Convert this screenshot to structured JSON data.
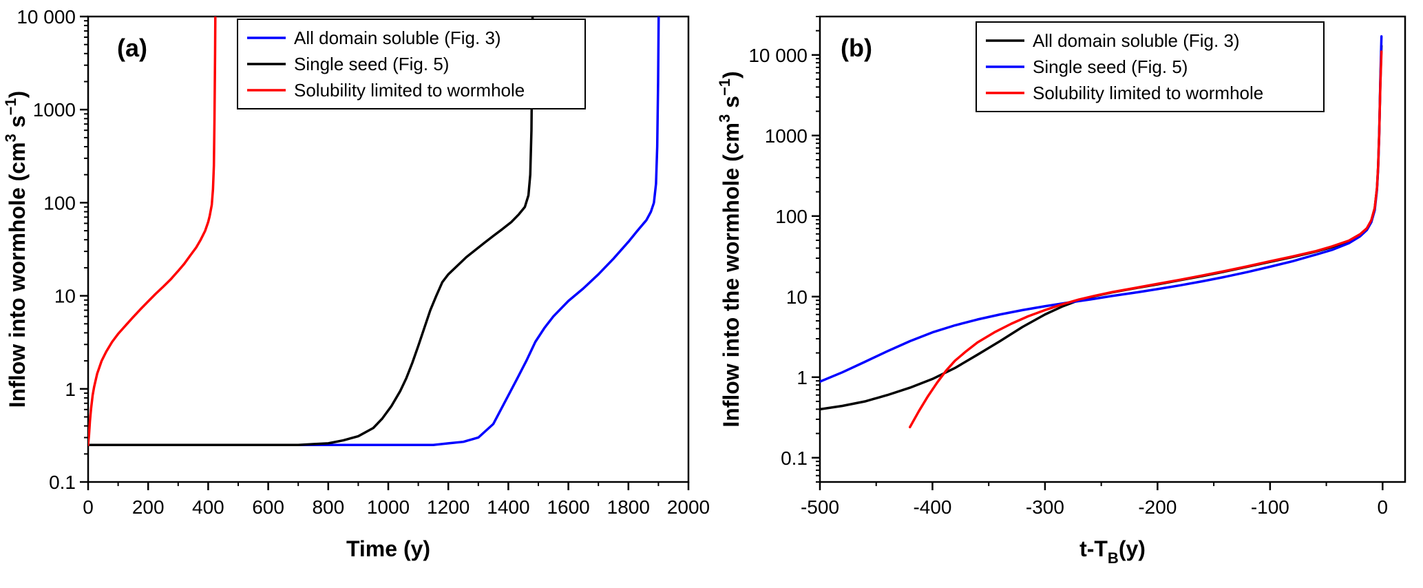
{
  "figure": {
    "background": "#ffffff"
  },
  "chart_data": [
    {
      "id": "a",
      "type": "line",
      "panel_label": "(a)",
      "xlabel_segments": [
        {
          "t": "Time (y)"
        }
      ],
      "ylabel_segments": [
        {
          "t": "Inflow into wormhole (cm"
        },
        {
          "t": "3",
          "sup": true
        },
        {
          "t": " s"
        },
        {
          "t": "−1",
          "sup": true
        },
        {
          "t": ")"
        }
      ],
      "x_range": [
        0,
        2000
      ],
      "y_range": [
        0.1,
        10000
      ],
      "y_scale": "log",
      "grid": false,
      "x_ticks": {
        "values": [
          0,
          200,
          400,
          600,
          800,
          1000,
          1200,
          1400,
          1600,
          1800,
          2000
        ],
        "labels": [
          "0",
          "200",
          "400",
          "600",
          "800",
          "1000",
          "1200",
          "1400",
          "1600",
          "1800",
          "2000"
        ]
      },
      "x_minor_step": 100,
      "y_ticks": {
        "values": [
          0.1,
          1,
          10,
          100,
          1000,
          10000
        ],
        "labels": [
          "0.1",
          "1",
          "10",
          "100",
          "1000",
          "10 000"
        ]
      },
      "legend_position": "top-center",
      "series": [
        {
          "name": "All domain soluble (Fig. 3)",
          "color": "#0000ff",
          "points": [
            [
              0,
              0.25
            ],
            [
              100,
              0.25
            ],
            [
              200,
              0.25
            ],
            [
              300,
              0.25
            ],
            [
              400,
              0.25
            ],
            [
              500,
              0.25
            ],
            [
              600,
              0.25
            ],
            [
              700,
              0.25
            ],
            [
              800,
              0.25
            ],
            [
              900,
              0.25
            ],
            [
              1000,
              0.25
            ],
            [
              1100,
              0.25
            ],
            [
              1150,
              0.25
            ],
            [
              1200,
              0.26
            ],
            [
              1250,
              0.27
            ],
            [
              1300,
              0.3
            ],
            [
              1350,
              0.42
            ],
            [
              1400,
              0.85
            ],
            [
              1430,
              1.3
            ],
            [
              1460,
              2.0
            ],
            [
              1490,
              3.2
            ],
            [
              1520,
              4.5
            ],
            [
              1550,
              6.0
            ],
            [
              1600,
              8.8
            ],
            [
              1650,
              12
            ],
            [
              1700,
              17
            ],
            [
              1750,
              25
            ],
            [
              1800,
              38
            ],
            [
              1830,
              50
            ],
            [
              1860,
              65
            ],
            [
              1875,
              80
            ],
            [
              1885,
              100
            ],
            [
              1892,
              160
            ],
            [
              1896,
              400
            ],
            [
              1899,
              2000
            ],
            [
              1901,
              12000
            ]
          ]
        },
        {
          "name": "Single seed (Fig. 5)",
          "color": "#000000",
          "points": [
            [
              0,
              0.25
            ],
            [
              100,
              0.25
            ],
            [
              200,
              0.25
            ],
            [
              300,
              0.25
            ],
            [
              400,
              0.25
            ],
            [
              500,
              0.25
            ],
            [
              600,
              0.25
            ],
            [
              700,
              0.25
            ],
            [
              750,
              0.255
            ],
            [
              800,
              0.26
            ],
            [
              850,
              0.28
            ],
            [
              900,
              0.31
            ],
            [
              950,
              0.38
            ],
            [
              980,
              0.48
            ],
            [
              1010,
              0.65
            ],
            [
              1040,
              0.95
            ],
            [
              1060,
              1.3
            ],
            [
              1080,
              1.9
            ],
            [
              1100,
              2.9
            ],
            [
              1120,
              4.5
            ],
            [
              1140,
              7
            ],
            [
              1160,
              10
            ],
            [
              1180,
              14
            ],
            [
              1200,
              17
            ],
            [
              1230,
              21
            ],
            [
              1260,
              26
            ],
            [
              1290,
              31
            ],
            [
              1320,
              37
            ],
            [
              1350,
              44
            ],
            [
              1380,
              52
            ],
            [
              1410,
              62
            ],
            [
              1435,
              75
            ],
            [
              1455,
              90
            ],
            [
              1467,
              120
            ],
            [
              1473,
              200
            ],
            [
              1477,
              600
            ],
            [
              1479,
              3000
            ],
            [
              1481,
              12000
            ]
          ]
        },
        {
          "name": "Solubility limited to wormhole",
          "color": "#ff0000",
          "points": [
            [
              0,
              0.25
            ],
            [
              3,
              0.32
            ],
            [
              6,
              0.45
            ],
            [
              10,
              0.62
            ],
            [
              15,
              0.85
            ],
            [
              20,
              1.05
            ],
            [
              30,
              1.45
            ],
            [
              45,
              2.0
            ],
            [
              60,
              2.5
            ],
            [
              80,
              3.2
            ],
            [
              100,
              3.9
            ],
            [
              125,
              4.8
            ],
            [
              150,
              5.9
            ],
            [
              175,
              7.2
            ],
            [
              200,
              8.7
            ],
            [
              225,
              10.5
            ],
            [
              250,
              12.5
            ],
            [
              275,
              15
            ],
            [
              300,
              18.5
            ],
            [
              320,
              22
            ],
            [
              340,
              27
            ],
            [
              360,
              33
            ],
            [
              375,
              40
            ],
            [
              390,
              50
            ],
            [
              400,
              62
            ],
            [
              405,
              72
            ],
            [
              412,
              95
            ],
            [
              416,
              140
            ],
            [
              419,
              250
            ],
            [
              421,
              800
            ],
            [
              423,
              4000
            ],
            [
              424,
              12000
            ]
          ]
        }
      ]
    },
    {
      "id": "b",
      "type": "line",
      "panel_label": "(b)",
      "xlabel_segments": [
        {
          "t": "t-T"
        },
        {
          "t": "B",
          "sub": true
        },
        {
          "t": "(y)"
        }
      ],
      "ylabel_segments": [
        {
          "t": "Inflow into the wormhole (cm"
        },
        {
          "t": "3",
          "sup": true
        },
        {
          "t": " s"
        },
        {
          "t": "−1",
          "sup": true
        },
        {
          "t": ")"
        }
      ],
      "x_range": [
        -500,
        20
      ],
      "y_range": [
        0.05,
        30000
      ],
      "y_scale": "log",
      "grid": false,
      "x_ticks": {
        "values": [
          -500,
          -400,
          -300,
          -200,
          -100,
          0
        ],
        "labels": [
          "-500",
          "-400",
          "-300",
          "-200",
          "-100",
          "0"
        ]
      },
      "x_minor_step": 50,
      "y_ticks": {
        "values": [
          0.1,
          1,
          10,
          100,
          1000,
          10000
        ],
        "labels": [
          "0.1",
          "1",
          "10",
          "100",
          "1000",
          "10 000"
        ]
      },
      "legend_position": "top-center",
      "series": [
        {
          "name": "All domain soluble (Fig. 3)",
          "color": "#000000",
          "points": [
            [
              -500,
              0.4
            ],
            [
              -480,
              0.44
            ],
            [
              -460,
              0.5
            ],
            [
              -440,
              0.6
            ],
            [
              -420,
              0.74
            ],
            [
              -400,
              0.95
            ],
            [
              -380,
              1.3
            ],
            [
              -360,
              1.9
            ],
            [
              -340,
              2.8
            ],
            [
              -320,
              4.2
            ],
            [
              -300,
              6.0
            ],
            [
              -285,
              7.5
            ],
            [
              -270,
              9.0
            ],
            [
              -255,
              10.2
            ],
            [
              -240,
              11.3
            ],
            [
              -220,
              12.7
            ],
            [
              -200,
              14.2
            ],
            [
              -180,
              16.0
            ],
            [
              -160,
              18.0
            ],
            [
              -140,
              20.5
            ],
            [
              -120,
              23.5
            ],
            [
              -100,
              27
            ],
            [
              -80,
              31
            ],
            [
              -60,
              36
            ],
            [
              -45,
              41
            ],
            [
              -30,
              49
            ],
            [
              -20,
              59
            ],
            [
              -14,
              70
            ],
            [
              -10,
              88
            ],
            [
              -7,
              125
            ],
            [
              -5,
              220
            ],
            [
              -4,
              400
            ],
            [
              -3,
              1100
            ],
            [
              -2,
              4500
            ],
            [
              -1,
              13000
            ]
          ]
        },
        {
          "name": "Single seed (Fig. 5)",
          "color": "#0000ff",
          "points": [
            [
              -500,
              0.88
            ],
            [
              -480,
              1.15
            ],
            [
              -460,
              1.55
            ],
            [
              -440,
              2.1
            ],
            [
              -420,
              2.8
            ],
            [
              -400,
              3.6
            ],
            [
              -380,
              4.4
            ],
            [
              -360,
              5.2
            ],
            [
              -340,
              6.0
            ],
            [
              -320,
              6.8
            ],
            [
              -300,
              7.6
            ],
            [
              -280,
              8.4
            ],
            [
              -260,
              9.2
            ],
            [
              -240,
              10.2
            ],
            [
              -220,
              11.2
            ],
            [
              -200,
              12.4
            ],
            [
              -180,
              13.8
            ],
            [
              -160,
              15.5
            ],
            [
              -140,
              17.6
            ],
            [
              -120,
              20.2
            ],
            [
              -100,
              23.5
            ],
            [
              -80,
              27.5
            ],
            [
              -60,
              33
            ],
            [
              -45,
              38
            ],
            [
              -30,
              46
            ],
            [
              -20,
              56
            ],
            [
              -14,
              67
            ],
            [
              -10,
              84
            ],
            [
              -7,
              118
            ],
            [
              -5,
              210
            ],
            [
              -4,
              380
            ],
            [
              -3,
              1000
            ],
            [
              -2,
              5000
            ],
            [
              -1,
              17000
            ]
          ]
        },
        {
          "name": "Solubility limited to wormhole",
          "color": "#ff0000",
          "points": [
            [
              -420,
              0.24
            ],
            [
              -412,
              0.38
            ],
            [
              -404,
              0.58
            ],
            [
              -396,
              0.85
            ],
            [
              -388,
              1.2
            ],
            [
              -380,
              1.6
            ],
            [
              -370,
              2.1
            ],
            [
              -360,
              2.7
            ],
            [
              -345,
              3.6
            ],
            [
              -330,
              4.6
            ],
            [
              -315,
              5.7
            ],
            [
              -300,
              6.8
            ],
            [
              -285,
              8.0
            ],
            [
              -270,
              9.2
            ],
            [
              -255,
              10.3
            ],
            [
              -240,
              11.4
            ],
            [
              -220,
              12.8
            ],
            [
              -200,
              14.4
            ],
            [
              -180,
              16.2
            ],
            [
              -160,
              18.3
            ],
            [
              -140,
              20.8
            ],
            [
              -120,
              23.8
            ],
            [
              -100,
              27.5
            ],
            [
              -80,
              31.5
            ],
            [
              -60,
              36.5
            ],
            [
              -45,
              42
            ],
            [
              -30,
              49.5
            ],
            [
              -20,
              59.5
            ],
            [
              -14,
              70.5
            ],
            [
              -10,
              89
            ],
            [
              -7,
              126
            ],
            [
              -5,
              222
            ],
            [
              -4,
              405
            ],
            [
              -3,
              1050
            ],
            [
              -2,
              4200
            ],
            [
              -1,
              11000
            ]
          ]
        }
      ]
    }
  ]
}
